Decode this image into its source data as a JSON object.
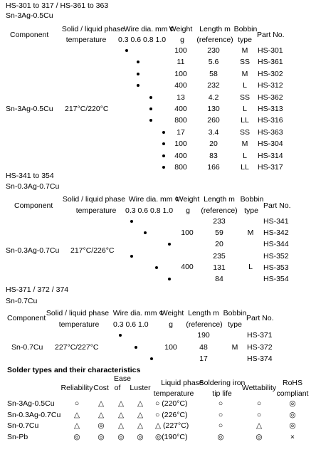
{
  "sec1": {
    "title": "HS-301 to 317 / HS-361 to 363",
    "alloy": "Sn-3Ag-0.5Cu",
    "hdr": {
      "component": "Component",
      "phase1": "Solid / liquid phase",
      "phase2": "temperature",
      "wire1": "Wire dia. mm ¢",
      "wire2": "0.3  0.6  0.8  1.0",
      "weight1": "Weight",
      "weight2": "g",
      "length1": "Length m",
      "length2": "(reference)",
      "bobbin1": "Bobbin",
      "bobbin2": "type",
      "part": "Part No."
    },
    "component": "Sn-3Ag-0.5Cu",
    "temperature": "217°C/220°C",
    "rows": [
      {
        "dia": "0.3",
        "weight": "100",
        "length": "230",
        "bobbin": "M",
        "part": "HS-301"
      },
      {
        "dia": "0.6",
        "weight": "11",
        "length": "5.6",
        "bobbin": "SS",
        "part": "HS-361"
      },
      {
        "dia": "0.6",
        "weight": "100",
        "length": "58",
        "bobbin": "M",
        "part": "HS-302"
      },
      {
        "dia": "0.6",
        "weight": "400",
        "length": "232",
        "bobbin": "L",
        "part": "HS-312"
      },
      {
        "dia": "0.8",
        "weight": "13",
        "length": "4.2",
        "bobbin": "SS",
        "part": "HS-362"
      },
      {
        "dia": "0.8",
        "weight": "400",
        "length": "130",
        "bobbin": "L",
        "part": "HS-313"
      },
      {
        "dia": "0.8",
        "weight": "800",
        "length": "260",
        "bobbin": "LL",
        "part": "HS-316"
      },
      {
        "dia": "1.0",
        "weight": "17",
        "length": "3.4",
        "bobbin": "SS",
        "part": "HS-363"
      },
      {
        "dia": "1.0",
        "weight": "100",
        "length": "20",
        "bobbin": "M",
        "part": "HS-304"
      },
      {
        "dia": "1.0",
        "weight": "400",
        "length": "83",
        "bobbin": "L",
        "part": "HS-314"
      },
      {
        "dia": "1.0",
        "weight": "800",
        "length": "166",
        "bobbin": "LL",
        "part": "HS-317"
      }
    ]
  },
  "sec2": {
    "title": "HS-341 to 354",
    "alloy": "Sn-0.3Ag-0.7Cu",
    "hdr": {
      "component": "Component",
      "phase1": "Solid / liquid phase",
      "phase2": "temperature",
      "wire1": "Wire dia. mm ¢",
      "wire2": "0.3  0.6  0.8  1.0",
      "weight1": "Weight",
      "weight2": "g",
      "length1": "Length m",
      "length2": "(reference)",
      "bobbin1": "Bobbin",
      "bobbin2": "type",
      "part": "Part No."
    },
    "component": "Sn-0.3Ag-0.7Cu",
    "temperature": "217°C/226°C",
    "weight_a": "100",
    "bobbin_a": "M",
    "weight_b": "400",
    "bobbin_b": "L",
    "rows": [
      {
        "dia": "0.3",
        "length": "233",
        "part": "HS-341"
      },
      {
        "dia": "0.6",
        "length": "59",
        "part": "HS-342"
      },
      {
        "dia": "1.0",
        "length": "20",
        "part": "HS-344"
      },
      {
        "dia": "0.3",
        "length": "235",
        "part": "HS-352"
      },
      {
        "dia": "0.8",
        "length": "131",
        "part": "HS-353"
      },
      {
        "dia": "1.0",
        "length": "84",
        "part": "HS-354"
      }
    ]
  },
  "sec3": {
    "title": "HS-371 / 372 / 374",
    "alloy": "Sn-0.7Cu",
    "hdr": {
      "component": "Component",
      "phase1": "Solid / liquid phase",
      "phase2": "temperature",
      "wire1": "Wire dia. mm ¢",
      "wire2": "0.3   0.6   1.0",
      "weight1": "Weight",
      "weight2": "g",
      "length1": "Length m",
      "length2": "(reference)",
      "bobbin1": "Bobbin",
      "bobbin2": "type",
      "part": "Part No."
    },
    "component": "Sn-0.7Cu",
    "temperature": "227°C/227°C",
    "weight": "100",
    "bobbin": "M",
    "rows": [
      {
        "dia": "0.3",
        "length": "190",
        "part": "HS-371"
      },
      {
        "dia": "0.6",
        "length": "48",
        "part": "HS-372"
      },
      {
        "dia": "1.0",
        "length": "17",
        "part": "HS-374"
      }
    ]
  },
  "sec4": {
    "title": "Solder types and their characteristics",
    "hdr": {
      "reliability": "Reliability",
      "cost": "Cost",
      "ease1": "Ease",
      "ease2": "of",
      "ease3": "use",
      "luster": "Luster",
      "liquid1": "Liquid phase",
      "liquid2": "temperature",
      "iron1": "Soldering iron",
      "iron2": "tip life",
      "wettability": "Wettability",
      "rohs1": "RoHS",
      "rohs2": "compliant"
    },
    "rows": [
      {
        "name": "Sn-3Ag-0.5Cu",
        "reliability": "○",
        "cost": "△",
        "ease": "△",
        "luster": "△",
        "liquid": "○ (220°C)",
        "iron": "○",
        "wettability": "○",
        "rohs": "◎"
      },
      {
        "name": "Sn-0.3Ag-0.7Cu",
        "reliability": "△",
        "cost": "△",
        "ease": "△",
        "luster": "△",
        "liquid": "○ (226°C)",
        "iron": "○",
        "wettability": "○",
        "rohs": "◎"
      },
      {
        "name": "Sn-0.7Cu",
        "reliability": "△",
        "cost": "◎",
        "ease": "△",
        "luster": "△",
        "liquid": "△ (227°C)",
        "iron": "○",
        "wettability": "△",
        "rohs": "◎"
      },
      {
        "name": "Sn-Pb",
        "reliability": "◎",
        "cost": "◎",
        "ease": "◎",
        "luster": "◎",
        "liquid": "◎(190°C)",
        "iron": "◎",
        "wettability": "◎",
        "rohs": "×"
      }
    ]
  }
}
